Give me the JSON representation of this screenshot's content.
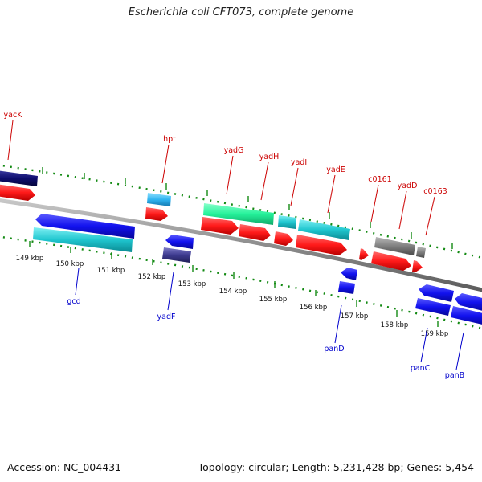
{
  "title": "Escherichia coli CFT073, complete genome",
  "footer": {
    "accession": "Accession: NC_004431",
    "summary": "Topology: circular; Length: 5,231,428 bp; Genes: 5,454"
  },
  "colors": {
    "backbone": "#8c8c8c",
    "tick": "#138a13",
    "forward_label": "#cc0000",
    "reverse_label": "#0000cc",
    "red": "#ff1a1a",
    "blue": "#1212ee",
    "cyan": "#1fc6cf",
    "light_blue": "#2fb4f0",
    "green": "#24f29a",
    "navy": "#0d0d6e",
    "slate": "#3d3a8f",
    "gray": "#7f7f7f"
  },
  "scale_labels": [
    "149 kbp",
    "150 kbp",
    "151 kbp",
    "152 kbp",
    "153 kbp",
    "154 kbp",
    "155 kbp",
    "156 kbp",
    "157 kbp",
    "158 kbp",
    "159 kbp"
  ],
  "forward_genes": [
    "yacK",
    "hpt",
    "yadG",
    "yadH",
    "yadI",
    "yadE",
    "c0161",
    "yadD",
    "c0163"
  ],
  "reverse_genes": [
    "gcd",
    "yadF",
    "panD",
    "panC",
    "panB"
  ]
}
